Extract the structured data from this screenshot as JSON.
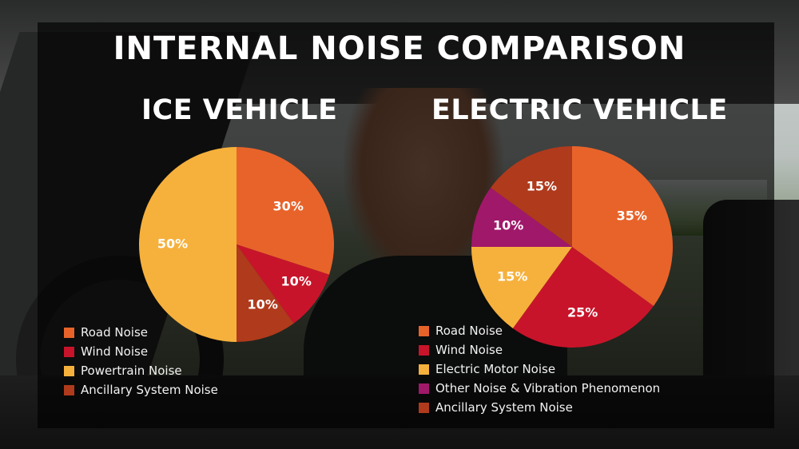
{
  "title": "INTERNAL NOISE COMPARISON",
  "chart_data": [
    {
      "type": "pie",
      "title": "ICE VEHICLE",
      "slices": [
        {
          "label": "Road Noise",
          "value": 30,
          "display": "30%",
          "color": "#e8632a"
        },
        {
          "label": "Wind Noise",
          "value": 10,
          "display": "10%",
          "color": "#c8142a"
        },
        {
          "label": "Powertrain Noise",
          "value": 50,
          "display": "50%",
          "color": "#f6b13c"
        },
        {
          "label": "Ancillary System Noise",
          "value": 10,
          "display": "10%",
          "color": "#b03a1c"
        }
      ],
      "pie_order": [
        "Road Noise",
        "Wind Noise",
        "Ancillary System Noise",
        "Powertrain Noise"
      ],
      "legend_placement": "bottom-left"
    },
    {
      "type": "pie",
      "title": "ELECTRIC VEHICLE",
      "slices": [
        {
          "label": "Road Noise",
          "value": 35,
          "display": "35%",
          "color": "#e8632a"
        },
        {
          "label": "Wind Noise",
          "value": 25,
          "display": "25%",
          "color": "#c8142a"
        },
        {
          "label": "Electric Motor Noise",
          "value": 15,
          "display": "15%",
          "color": "#f6b13c"
        },
        {
          "label": "Other Noise & Vibration Phenomenon",
          "value": 10,
          "display": "10%",
          "color": "#a0186a"
        },
        {
          "label": "Ancillary System Noise",
          "value": 15,
          "display": "15%",
          "color": "#b03a1c"
        }
      ],
      "pie_order": [
        "Road Noise",
        "Wind Noise",
        "Electric Motor Noise",
        "Other Noise & Vibration Phenomenon",
        "Ancillary System Noise"
      ],
      "legend_placement": "bottom-left"
    }
  ]
}
